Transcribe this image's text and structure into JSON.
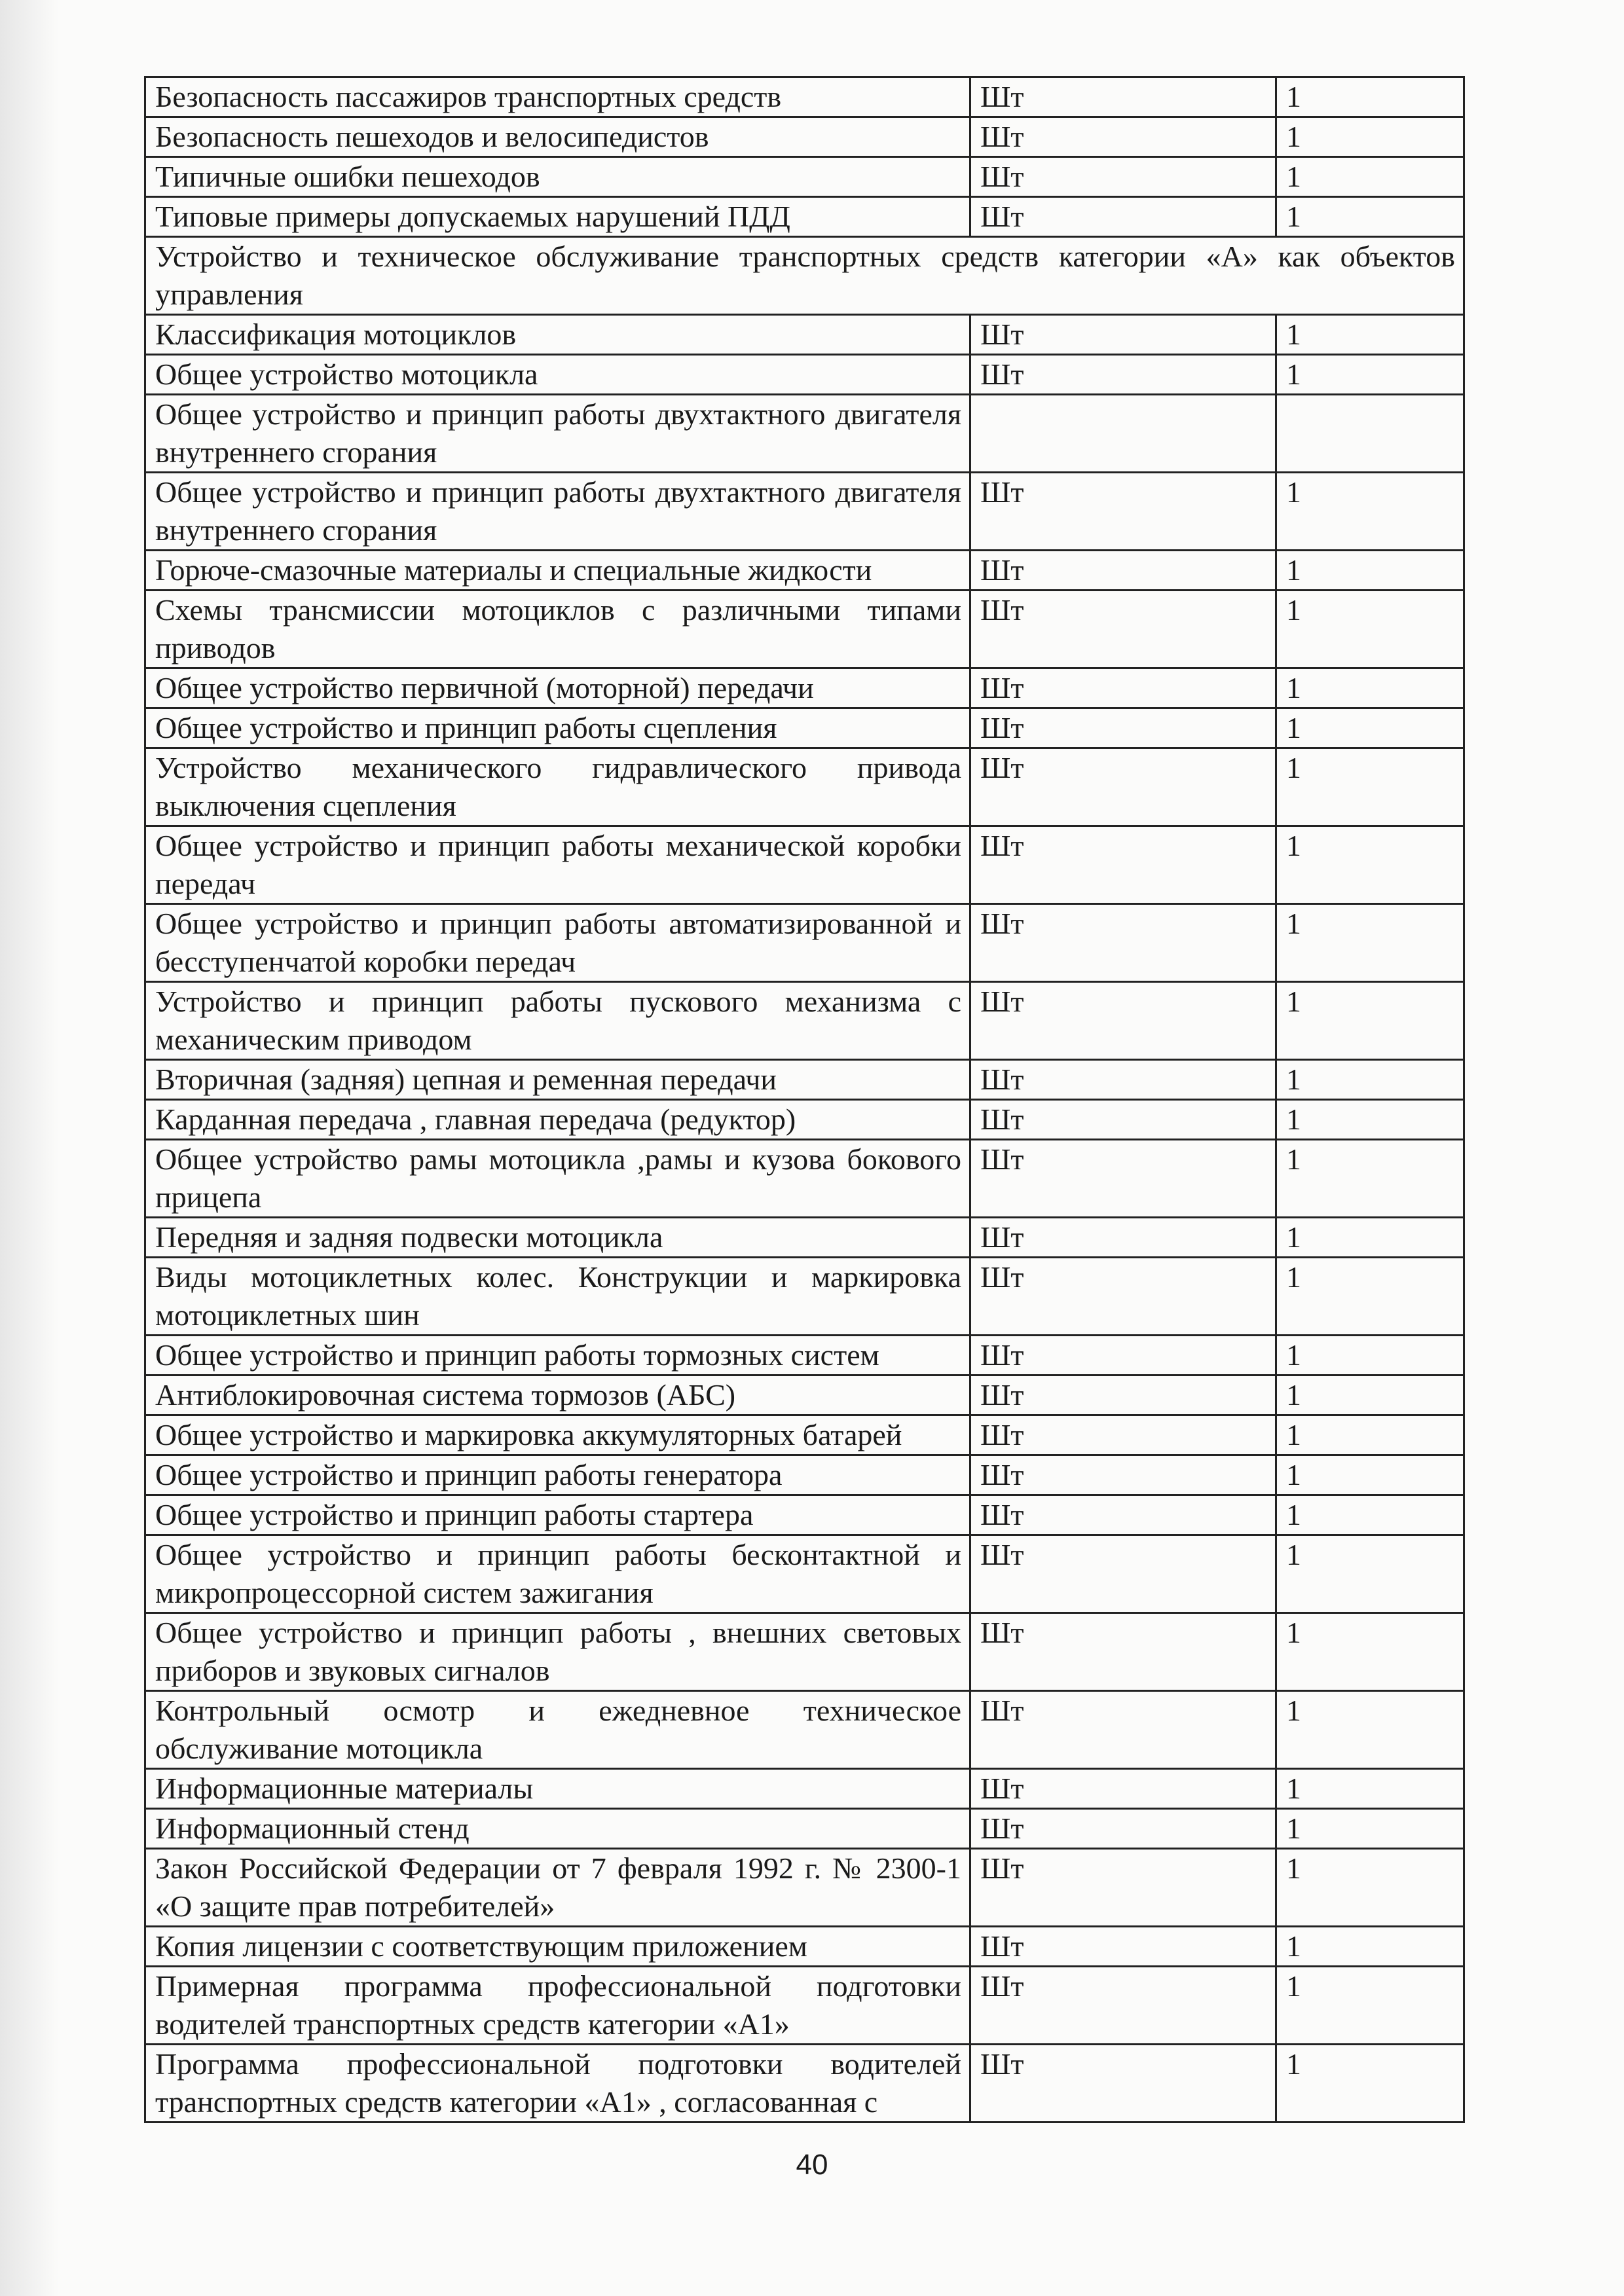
{
  "rows_before": [
    {
      "name": "Безопасность пассажиров транспортных средств",
      "unit": "Шт",
      "qty": "1"
    },
    {
      "name": "Безопасность пешеходов и велосипедистов",
      "unit": "Шт",
      "qty": "1"
    },
    {
      "name": "Типичные ошибки пешеходов",
      "unit": "Шт",
      "qty": "1"
    },
    {
      "name": "Типовые примеры допускаемых нарушений ПДД",
      "unit": "Шт",
      "qty": "1"
    }
  ],
  "section_heading": "Устройство и техническое обслуживание транспортных средств категории «А» как объектов управления",
  "rows_after": [
    {
      "name": "Классификация мотоциклов",
      "unit": "Шт",
      "qty": "1"
    },
    {
      "name": "Общее устройство мотоцикла",
      "unit": "Шт",
      "qty": "1"
    },
    {
      "name": "Общее устройство и принцип работы двухтактного двигателя внутреннего сгорания",
      "unit": "",
      "qty": ""
    },
    {
      "name": "Общее устройство и принцип работы двухтактного двигателя внутреннего сгорания",
      "unit": "Шт",
      "qty": "1"
    },
    {
      "name": "Горюче-смазочные материалы и специальные жидкости",
      "unit": "Шт",
      "qty": "1"
    },
    {
      "name": "Схемы трансмиссии мотоциклов с различными типами приводов",
      "unit": "Шт",
      "qty": "1"
    },
    {
      "name": "Общее устройство первичной (моторной) передачи",
      "unit": "Шт",
      "qty": "1"
    },
    {
      "name": "Общее устройство и принцип работы сцепления",
      "unit": "Шт",
      "qty": "1"
    },
    {
      "name": "Устройство механического гидравлического привода выключения сцепления",
      "unit": "Шт",
      "qty": "1"
    },
    {
      "name": "Общее устройство и принцип работы механической коробки передач",
      "unit": "Шт",
      "qty": "1"
    },
    {
      "name": "Общее устройство и принцип работы автоматизированной и бесступенчатой коробки передач",
      "unit": "Шт",
      "qty": "1"
    },
    {
      "name": "Устройство и принцип работы пускового механизма с механическим приводом",
      "unit": "Шт",
      "qty": "1"
    },
    {
      "name": "Вторичная (задняя) цепная и ременная передачи",
      "unit": "Шт",
      "qty": "1"
    },
    {
      "name": "Карданная передача , главная передача (редуктор)",
      "unit": "Шт",
      "qty": "1"
    },
    {
      "name": "Общее устройство рамы мотоцикла ,рамы и кузова бокового прицепа",
      "unit": "Шт",
      "qty": "1"
    },
    {
      "name": "Передняя и задняя подвески мотоцикла",
      "unit": "Шт",
      "qty": "1"
    },
    {
      "name": "Виды мотоциклетных колес. Конструкции и маркировка мотоциклетных шин",
      "unit": "Шт",
      "qty": "1"
    },
    {
      "name": "Общее устройство и принцип работы тормозных систем",
      "unit": "Шт",
      "qty": "1"
    },
    {
      "name": "Антиблокировочная система тормозов (АБС)",
      "unit": "Шт",
      "qty": "1"
    },
    {
      "name": "Общее устройство и маркировка аккумуляторных батарей",
      "unit": "Шт",
      "qty": "1"
    },
    {
      "name": "Общее устройство и принцип работы генератора",
      "unit": "Шт",
      "qty": "1"
    },
    {
      "name": "Общее устройство и принцип работы стартера",
      "unit": "Шт",
      "qty": "1"
    },
    {
      "name": "Общее устройство и принцип работы бесконтактной и микропроцессорной систем зажигания",
      "unit": "Шт",
      "qty": "1"
    },
    {
      "name": "Общее устройство и принцип работы , внешних световых приборов и звуковых сигналов",
      "unit": "Шт",
      "qty": "1"
    },
    {
      "name": "Контрольный осмотр и ежедневное техническое обслуживание мотоцикла",
      "unit": "Шт",
      "qty": "1"
    },
    {
      "name": "Информационные материалы",
      "unit": "Шт",
      "qty": "1"
    },
    {
      "name": "Информационный стенд",
      "unit": "Шт",
      "qty": "1"
    },
    {
      "name": "Закон Российской Федерации от 7 февраля 1992 г. № 2300-1 «О защите прав потребителей»",
      "unit": "Шт",
      "qty": "1"
    },
    {
      "name": "Копия лицензии с соответствующим приложением",
      "unit": "Шт",
      "qty": "1"
    },
    {
      "name": "Примерная программа профессиональной подготовки водителей транспортных средств категории «А1»",
      "unit": "Шт",
      "qty": "1"
    },
    {
      "name": "Программа профессиональной подготовки водителей транспортных средств категории «А1» , согласованная с",
      "unit": "Шт",
      "qty": "1"
    }
  ],
  "page_number": "40"
}
